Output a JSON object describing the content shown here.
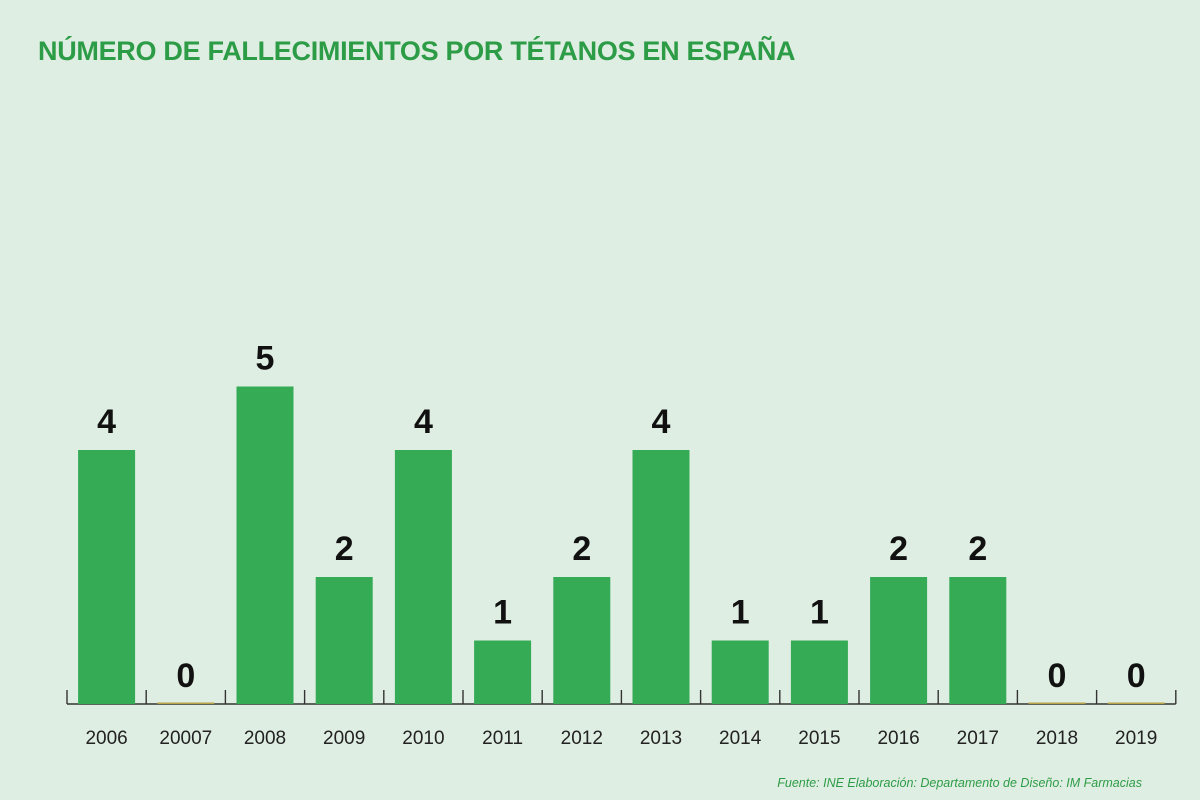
{
  "chart_data": {
    "type": "bar",
    "title": "NÚMERO DE FALLECIMIENTOS POR TÉTANOS EN ESPAÑA",
    "categories": [
      "2006",
      "20007",
      "2008",
      "2009",
      "2010",
      "2011",
      "2012",
      "2013",
      "2014",
      "2015",
      "2016",
      "2017",
      "2018",
      "2019"
    ],
    "values": [
      4,
      0,
      5,
      2,
      4,
      1,
      2,
      4,
      1,
      1,
      2,
      2,
      0,
      0
    ],
    "data_labels": [
      "4",
      "0",
      "5",
      "2",
      "4",
      "1",
      "2",
      "4",
      "1",
      "1",
      "2",
      "2",
      "0",
      "0"
    ],
    "ylim": [
      0,
      5
    ],
    "grid": false,
    "legend": "none",
    "colors": {
      "bar": "#34ab54",
      "zero_bar": "#b8a24a",
      "axis": "#333333",
      "title": "#2d9c46",
      "background": "#dfeee3"
    },
    "source": "Fuente: INE  Elaboración: Departamento de Diseño: IM Farmacias"
  }
}
